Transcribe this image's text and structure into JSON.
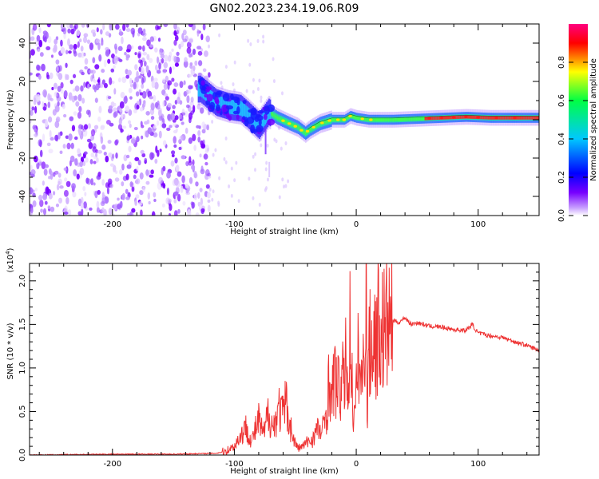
{
  "figure_title": "GN02.2023.234.19.06.R09",
  "chart_data": [
    {
      "type": "heatmap",
      "title": "GN02.2023.234.19.06.R09",
      "xlabel": "Height of straight line (km)",
      "ylabel": "Frequency (Hz)",
      "xlim": [
        -268,
        150
      ],
      "ylim": [
        -50,
        50
      ],
      "x_ticks": [
        -200,
        -100,
        0,
        100
      ],
      "y_ticks": [
        -40,
        -20,
        0,
        20,
        40
      ],
      "x_tick_labels": [
        "-200",
        "-100",
        "0",
        "100"
      ],
      "y_tick_labels": [
        "-40",
        "-20",
        "0",
        "20",
        "40"
      ],
      "colorbar": {
        "label": "Normalized spectral amplitude",
        "range": [
          0,
          1
        ],
        "ticks": [
          0.0,
          0.2,
          0.4,
          0.6,
          0.8
        ],
        "tick_labels": [
          "0.0",
          "0.2",
          "0.4",
          "0.6",
          "0.8"
        ],
        "colors": [
          "#ffffff",
          "#7700ff",
          "#0000ff",
          "#00c8ff",
          "#00ff44",
          "#ffff00",
          "#ff0000",
          "#ff0080"
        ]
      },
      "noise_region": {
        "x": [
          -268,
          -120
        ],
        "y": [
          -50,
          50
        ]
      },
      "ridge": {
        "x": [
          -128,
          -115,
          -105,
          -95,
          -88,
          -80,
          -72,
          -65,
          -55,
          -48,
          -42,
          -38,
          -30,
          -20,
          -10,
          -5,
          0,
          10,
          20,
          30,
          50,
          70,
          90,
          110,
          130,
          150
        ],
        "y": [
          16,
          9,
          7,
          6,
          2,
          -3,
          4,
          1,
          -2,
          -4,
          -7,
          -5,
          -2,
          0,
          0,
          2,
          1,
          0,
          0,
          0,
          0.5,
          1,
          1.5,
          1,
          1,
          1
        ]
      },
      "grid": false,
      "legend": "none"
    },
    {
      "type": "line",
      "xlabel": "Height of straight line (km)",
      "ylabel": "SNR (10 * v/v)",
      "y_multiplier": "(x10^4)",
      "xlim": [
        -268,
        150
      ],
      "ylim": [
        0,
        2.2
      ],
      "x_ticks": [
        -200,
        -100,
        0,
        100
      ],
      "y_ticks": [
        0.0,
        0.5,
        1.0,
        1.5,
        2.0
      ],
      "x_tick_labels": [
        "-200",
        "-100",
        "0",
        "100"
      ],
      "y_tick_labels": [
        "0.0",
        "0.5",
        "1.0",
        "1.5",
        "2.0"
      ],
      "color": "#ee3333",
      "series": [
        {
          "x": [
            -268,
            -200,
            -150,
            -115,
            -108,
            -100,
            -96,
            -90,
            -86,
            -80,
            -76,
            -72,
            -68,
            -64,
            -60,
            -58,
            -55,
            -52,
            -48,
            -44,
            -40,
            -36,
            -32,
            -28,
            -24,
            -22,
            -20,
            -18,
            -15,
            -12,
            -10,
            -8,
            -6,
            -5,
            -3,
            -1,
            0,
            2,
            4,
            6,
            8,
            9,
            10,
            12,
            14,
            16,
            18,
            20,
            25,
            30,
            35,
            40,
            45,
            50,
            60,
            70,
            80,
            90,
            95,
            100,
            110,
            120,
            130,
            140,
            150
          ],
          "y": [
            0.0,
            0.01,
            0.01,
            0.02,
            0.04,
            0.1,
            0.2,
            0.32,
            0.15,
            0.4,
            0.22,
            0.5,
            0.3,
            0.55,
            0.45,
            0.62,
            0.4,
            0.2,
            0.08,
            0.1,
            0.15,
            0.18,
            0.3,
            0.25,
            0.55,
            0.9,
            0.6,
            0.95,
            0.75,
            0.8,
            0.9,
            1.1,
            0.7,
            1.6,
            0.6,
            0.4,
            0.7,
            1.2,
            0.8,
            1.0,
            2.2,
            0.3,
            1.3,
            1.2,
            1.4,
            1.3,
            1.5,
            1.4,
            1.48,
            1.55,
            1.52,
            1.58,
            1.5,
            1.52,
            1.48,
            1.47,
            1.44,
            1.43,
            1.5,
            1.4,
            1.37,
            1.35,
            1.3,
            1.26,
            1.2
          ]
        }
      ],
      "grid": false,
      "legend": "none"
    }
  ]
}
